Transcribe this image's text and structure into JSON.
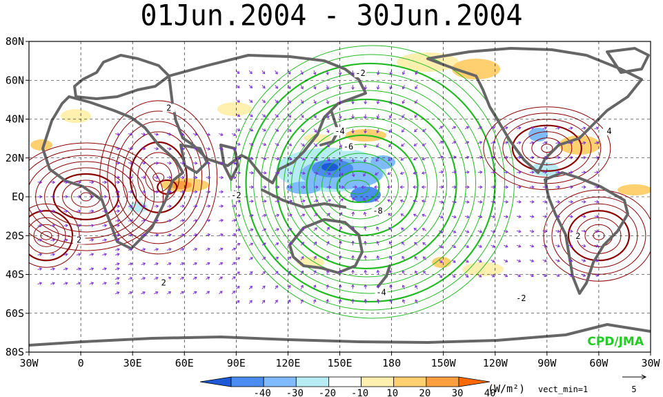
{
  "title": "01Jun.2004 - 30Jun.2004",
  "credit": "CPD/JMA",
  "map": {
    "lon_labels": [
      "30W",
      "0",
      "30E",
      "60E",
      "90E",
      "120E",
      "150E",
      "180",
      "150W",
      "120W",
      "90W",
      "60W",
      "30W"
    ],
    "lat_labels": [
      "80N",
      "60N",
      "40N",
      "20N",
      "EQ",
      "20S",
      "40S",
      "60S",
      "80S"
    ],
    "contour_labels": [
      {
        "text": "-2",
        "lon": 162,
        "lat": 63
      },
      {
        "text": "-4",
        "lon": 150,
        "lat": 33
      },
      {
        "text": "-6",
        "lon": 155,
        "lat": 25
      },
      {
        "text": "-8",
        "lon": 172,
        "lat": -8
      },
      {
        "text": "-4",
        "lon": 174,
        "lat": -50
      },
      {
        "text": "-2",
        "lon": 255,
        "lat": -53
      },
      {
        "text": "-2",
        "lon": 90,
        "lat": 0
      },
      {
        "text": "2",
        "lon": -1,
        "lat": -23
      },
      {
        "text": "2",
        "lon": 51,
        "lat": 45
      },
      {
        "text": "2",
        "lon": 48,
        "lat": -45
      },
      {
        "text": "4",
        "lon": 306,
        "lat": 33
      },
      {
        "text": "2",
        "lon": 288,
        "lat": -21
      }
    ],
    "colors": {
      "negative_contour": "#22bb22",
      "positive_contour": "#8b0000",
      "coast": "#555555",
      "vector": "#7a2fd6"
    }
  },
  "colorbar": {
    "labels": [
      "-40",
      "-30",
      "-20",
      "-10",
      "10",
      "20",
      "30",
      "40"
    ],
    "units": "(W/m²)",
    "vector_note": "vect_min=1",
    "ref_vector_value": "5",
    "colors": [
      "#1e5ad6",
      "#4a8cf0",
      "#7fbcff",
      "#b7ecf5",
      "#ffffff",
      "#fff0b0",
      "#ffd070",
      "#ffa040",
      "#ff6a00"
    ]
  }
}
